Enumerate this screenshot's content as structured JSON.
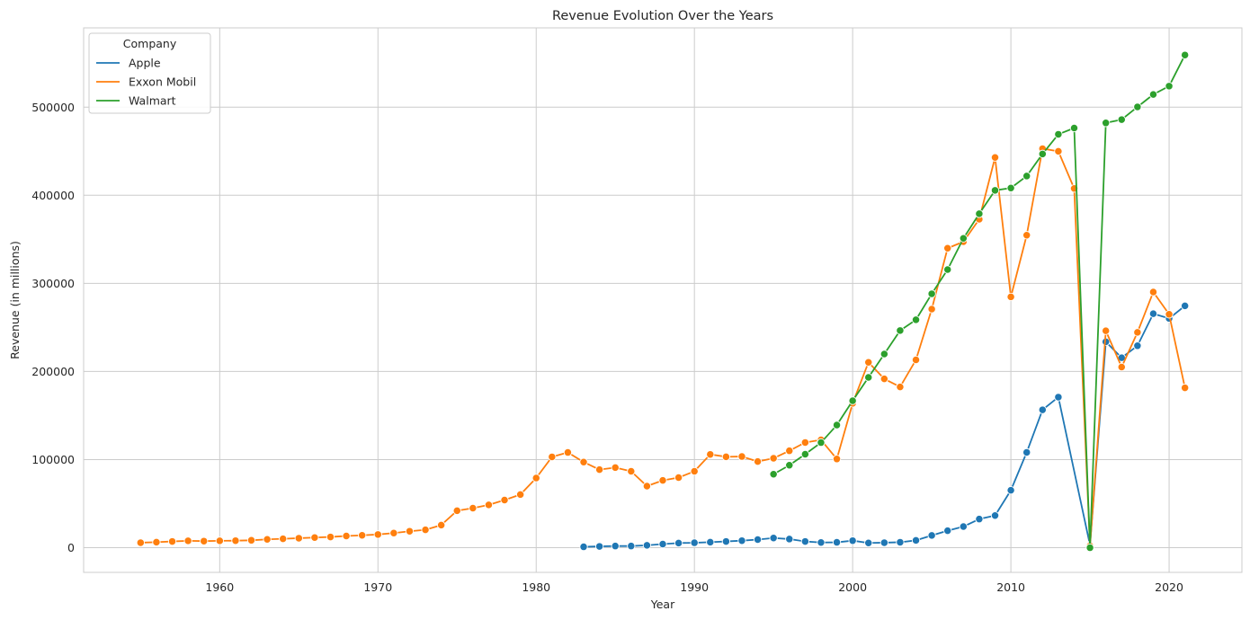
{
  "chart_data": {
    "type": "line",
    "title": "Revenue Evolution Over the Years",
    "xlabel": "Year",
    "ylabel": "Revenue (in millions)",
    "xlim": [
      1951.4,
      1924.6
    ],
    "ylim": [
      -28000,
      590000
    ],
    "x_ticks": [
      1960,
      1970,
      1980,
      1990,
      2000,
      2010,
      2020
    ],
    "y_ticks": [
      0,
      100000,
      200000,
      300000,
      400000,
      500000
    ],
    "x_tick_labels": [
      "1960",
      "1970",
      "1980",
      "1990",
      "2000",
      "2010",
      "2020"
    ],
    "y_tick_labels": [
      "0",
      "100000",
      "200000",
      "300000",
      "400000",
      "500000"
    ],
    "grid": true,
    "marker": "circle",
    "legend": {
      "title": "Company",
      "position": "top-left",
      "entries": [
        "Apple",
        "Exxon Mobil",
        "Walmart"
      ]
    },
    "colors": {
      "Apple": "#1f77b4",
      "Exxon Mobil": "#ff7f0e",
      "Walmart": "#2ca02c"
    },
    "series": [
      {
        "name": "Apple",
        "color": "#1f77b4",
        "points": [
          [
            1983,
            1000
          ],
          [
            1984,
            1500
          ],
          [
            1985,
            1900
          ],
          [
            1986,
            1900
          ],
          [
            1987,
            2700
          ],
          [
            1988,
            4100
          ],
          [
            1989,
            5300
          ],
          [
            1990,
            5600
          ],
          [
            1991,
            6300
          ],
          [
            1992,
            7100
          ],
          [
            1993,
            8000
          ],
          [
            1994,
            9200
          ],
          [
            1995,
            11000
          ],
          [
            1996,
            9800
          ],
          [
            1997,
            7100
          ],
          [
            1998,
            5900
          ],
          [
            1999,
            6100
          ],
          [
            2000,
            8000
          ],
          [
            2001,
            5400
          ],
          [
            2002,
            5700
          ],
          [
            2003,
            6200
          ],
          [
            2004,
            8300
          ],
          [
            2005,
            13900
          ],
          [
            2006,
            19300
          ],
          [
            2007,
            24000
          ],
          [
            2008,
            32500
          ],
          [
            2009,
            36500
          ],
          [
            2010,
            65200
          ],
          [
            2011,
            108200
          ],
          [
            2012,
            156500
          ],
          [
            2013,
            170900
          ],
          [
            2015,
            3000
          ],
          [
            2016,
            233700
          ],
          [
            2017,
            215600
          ],
          [
            2018,
            229200
          ],
          [
            2019,
            265600
          ],
          [
            2020,
            260200
          ],
          [
            2021,
            274500
          ]
        ]
      },
      {
        "name": "Exxon Mobil",
        "color": "#ff7f0e",
        "points": [
          [
            1955,
            5700
          ],
          [
            1956,
            6300
          ],
          [
            1957,
            7100
          ],
          [
            1958,
            7800
          ],
          [
            1959,
            7500
          ],
          [
            1960,
            7800
          ],
          [
            1961,
            8000
          ],
          [
            1962,
            8400
          ],
          [
            1963,
            9500
          ],
          [
            1964,
            10100
          ],
          [
            1965,
            10800
          ],
          [
            1966,
            11500
          ],
          [
            1967,
            12200
          ],
          [
            1968,
            13300
          ],
          [
            1969,
            14100
          ],
          [
            1970,
            15000
          ],
          [
            1971,
            16600
          ],
          [
            1972,
            18700
          ],
          [
            1973,
            20300
          ],
          [
            1974,
            25700
          ],
          [
            1975,
            42000
          ],
          [
            1976,
            44900
          ],
          [
            1977,
            48600
          ],
          [
            1978,
            54100
          ],
          [
            1979,
            60300
          ],
          [
            1980,
            79100
          ],
          [
            1981,
            103100
          ],
          [
            1982,
            108100
          ],
          [
            1983,
            97200
          ],
          [
            1984,
            88600
          ],
          [
            1985,
            90900
          ],
          [
            1986,
            86700
          ],
          [
            1987,
            69900
          ],
          [
            1988,
            76400
          ],
          [
            1989,
            79600
          ],
          [
            1990,
            86700
          ],
          [
            1991,
            105900
          ],
          [
            1992,
            103200
          ],
          [
            1993,
            103500
          ],
          [
            1994,
            97800
          ],
          [
            1995,
            101500
          ],
          [
            1996,
            110000
          ],
          [
            1997,
            119400
          ],
          [
            1998,
            122400
          ],
          [
            1999,
            100700
          ],
          [
            2000,
            163900
          ],
          [
            2001,
            210400
          ],
          [
            2002,
            191600
          ],
          [
            2003,
            182500
          ],
          [
            2004,
            213200
          ],
          [
            2005,
            270800
          ],
          [
            2006,
            339900
          ],
          [
            2007,
            347300
          ],
          [
            2008,
            372800
          ],
          [
            2009,
            442900
          ],
          [
            2010,
            284700
          ],
          [
            2011,
            354700
          ],
          [
            2012,
            452900
          ],
          [
            2013,
            449900
          ],
          [
            2014,
            407700
          ],
          [
            2015,
            2000
          ],
          [
            2016,
            246200
          ],
          [
            2017,
            205000
          ],
          [
            2018,
            244400
          ],
          [
            2019,
            290200
          ],
          [
            2020,
            264900
          ],
          [
            2021,
            181500
          ]
        ]
      },
      {
        "name": "Walmart",
        "color": "#2ca02c",
        "points": [
          [
            1995,
            83400
          ],
          [
            1996,
            93600
          ],
          [
            1997,
            106100
          ],
          [
            1998,
            119300
          ],
          [
            1999,
            139200
          ],
          [
            2000,
            166800
          ],
          [
            2001,
            193300
          ],
          [
            2002,
            219800
          ],
          [
            2003,
            246500
          ],
          [
            2004,
            258700
          ],
          [
            2005,
            288200
          ],
          [
            2006,
            315700
          ],
          [
            2007,
            351100
          ],
          [
            2008,
            379000
          ],
          [
            2009,
            405600
          ],
          [
            2010,
            408200
          ],
          [
            2011,
            421800
          ],
          [
            2012,
            446900
          ],
          [
            2013,
            469200
          ],
          [
            2014,
            476300
          ],
          [
            2015,
            0
          ],
          [
            2016,
            482100
          ],
          [
            2017,
            485900
          ],
          [
            2018,
            500300
          ],
          [
            2019,
            514400
          ],
          [
            2020,
            523900
          ],
          [
            2021,
            559200
          ]
        ]
      }
    ]
  }
}
